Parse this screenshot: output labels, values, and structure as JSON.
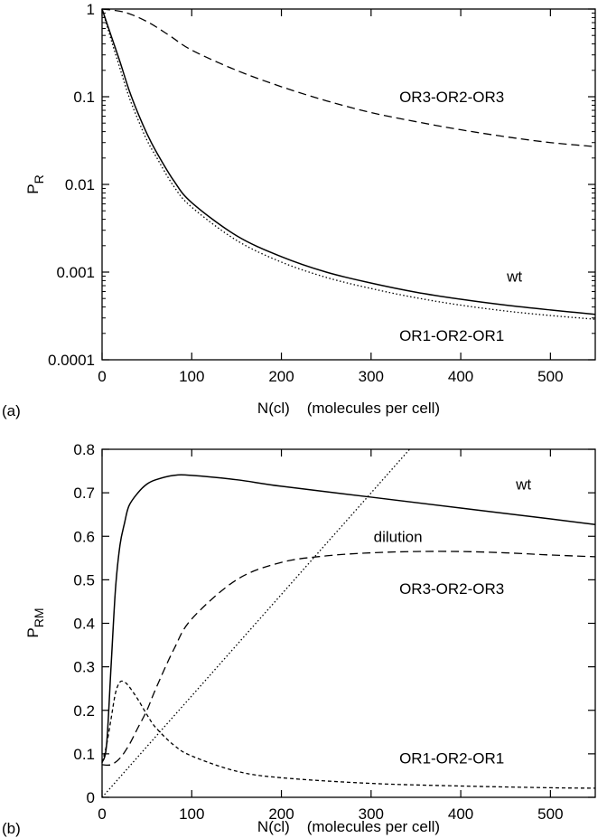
{
  "chart_data": [
    {
      "panel_label": "(a)",
      "type": "line",
      "x_scale": "linear",
      "y_scale": "log",
      "xlabel": "N(cl)    (molecules per cell)",
      "ylabel": "P",
      "ylabel_sub": "R",
      "xlim": [
        0,
        550
      ],
      "ylim": [
        0.0001,
        1
      ],
      "xticks": [
        0,
        100,
        200,
        300,
        400,
        500
      ],
      "xtick_labels": [
        "0",
        "100",
        "200",
        "300",
        "400",
        "500"
      ],
      "yticks": [
        0.0001,
        0.001,
        0.01,
        0.1,
        1
      ],
      "ytick_labels": [
        "0.0001",
        "0.001",
        "0.01",
        "0.1",
        "1"
      ],
      "grid": false,
      "annotations": [
        {
          "text": "OR3-OR2-OR3",
          "x": 390,
          "y": 0.1
        },
        {
          "text": "wt",
          "x": 460,
          "y": 0.0009
        },
        {
          "text": "OR1-OR2-OR1",
          "x": 390,
          "y": 0.00019
        }
      ],
      "series": [
        {
          "style": "solid",
          "x": [
            0,
            10,
            20,
            30,
            40,
            50,
            60,
            80,
            100,
            150,
            200,
            250,
            300,
            350,
            400,
            450,
            500,
            550
          ],
          "y": [
            1,
            0.5,
            0.25,
            0.12,
            0.065,
            0.038,
            0.024,
            0.011,
            0.0062,
            0.0026,
            0.0015,
            0.001,
            0.00075,
            0.00059,
            0.00049,
            0.00042,
            0.00037,
            0.00033
          ]
        },
        {
          "style": "dotted",
          "x": [
            0,
            10,
            20,
            30,
            40,
            50,
            60,
            80,
            100,
            150,
            200,
            250,
            300,
            350,
            400,
            450,
            500,
            550
          ],
          "y": [
            1,
            0.45,
            0.21,
            0.1,
            0.055,
            0.032,
            0.021,
            0.0095,
            0.0055,
            0.0023,
            0.0013,
            0.00087,
            0.00065,
            0.00051,
            0.00042,
            0.00036,
            0.00032,
            0.00029
          ]
        },
        {
          "style": "dashed",
          "x": [
            0,
            25,
            50,
            75,
            100,
            150,
            200,
            250,
            300,
            350,
            400,
            450,
            500,
            550
          ],
          "y": [
            1,
            0.92,
            0.72,
            0.5,
            0.34,
            0.2,
            0.13,
            0.09,
            0.066,
            0.052,
            0.042,
            0.035,
            0.03,
            0.027
          ]
        }
      ]
    },
    {
      "panel_label": "(b)",
      "type": "line",
      "x_scale": "linear",
      "y_scale": "linear",
      "xlabel": "N(cl)    (molecules per cell)",
      "ylabel": "P",
      "ylabel_sub": "RM",
      "xlim": [
        0,
        550
      ],
      "ylim": [
        0,
        0.8
      ],
      "xticks": [
        0,
        100,
        200,
        300,
        400,
        500
      ],
      "xtick_labels": [
        "0",
        "100",
        "200",
        "300",
        "400",
        "500"
      ],
      "yticks": [
        0,
        0.1,
        0.2,
        0.3,
        0.4,
        0.5,
        0.6,
        0.7,
        0.8
      ],
      "ytick_labels": [
        "0",
        "0.1",
        "0.2",
        "0.3",
        "0.4",
        "0.5",
        "0.6",
        "0.7",
        "0.8"
      ],
      "grid": false,
      "annotations": [
        {
          "text": "wt",
          "x": 470,
          "y": 0.72
        },
        {
          "text": "dilution",
          "x": 330,
          "y": 0.6
        },
        {
          "text": "OR3-OR2-OR3",
          "x": 390,
          "y": 0.48
        },
        {
          "text": "OR1-OR2-OR1",
          "x": 390,
          "y": 0.09
        }
      ],
      "series": [
        {
          "style": "solid",
          "x": [
            0,
            5,
            10,
            15,
            20,
            25,
            30,
            40,
            50,
            60,
            80,
            100,
            150,
            200,
            300,
            400,
            500,
            550
          ],
          "y": [
            0.08,
            0.12,
            0.3,
            0.48,
            0.58,
            0.63,
            0.67,
            0.7,
            0.72,
            0.73,
            0.74,
            0.74,
            0.73,
            0.715,
            0.69,
            0.665,
            0.64,
            0.627
          ]
        },
        {
          "style": "dashed",
          "x": [
            0,
            10,
            20,
            30,
            40,
            50,
            60,
            80,
            100,
            150,
            200,
            250,
            300,
            350,
            400,
            450,
            500,
            550
          ],
          "y": [
            0.075,
            0.075,
            0.09,
            0.12,
            0.16,
            0.2,
            0.25,
            0.34,
            0.41,
            0.5,
            0.54,
            0.555,
            0.562,
            0.565,
            0.565,
            0.562,
            0.557,
            0.553
          ]
        },
        {
          "style": "short-dashed",
          "x": [
            0,
            5,
            10,
            15,
            20,
            25,
            30,
            40,
            50,
            60,
            80,
            100,
            150,
            200,
            300,
            400,
            500,
            550
          ],
          "y": [
            0.08,
            0.12,
            0.18,
            0.24,
            0.265,
            0.265,
            0.255,
            0.225,
            0.19,
            0.16,
            0.12,
            0.095,
            0.06,
            0.045,
            0.032,
            0.026,
            0.022,
            0.021
          ]
        },
        {
          "style": "dotted",
          "x": [
            0,
            343
          ],
          "y": [
            0,
            0.8
          ]
        }
      ]
    }
  ]
}
